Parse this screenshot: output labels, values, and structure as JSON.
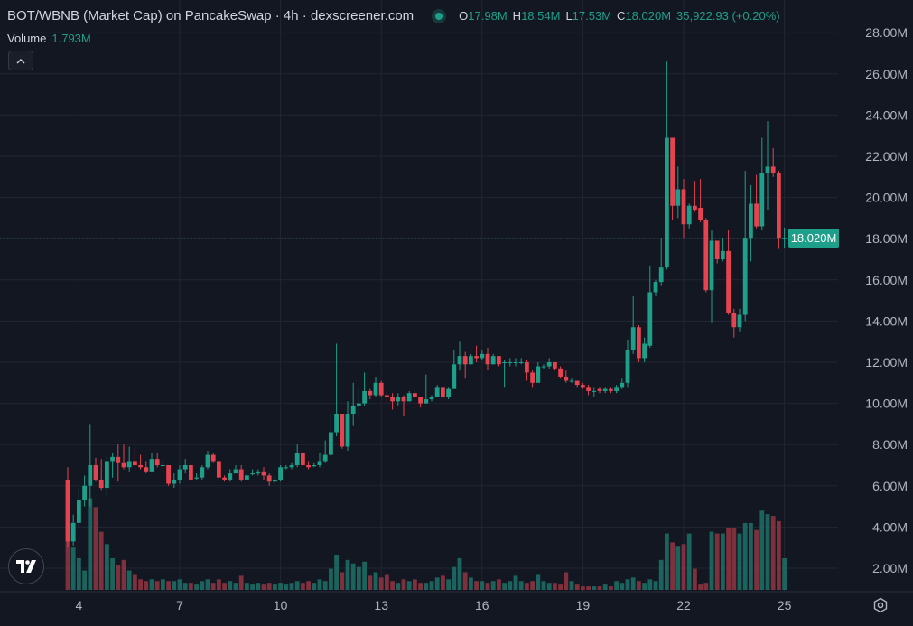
{
  "header": {
    "title": "BOT/WBNB (Market Cap) on PancakeSwap · 4h · dexscreener.com",
    "open_key": "O",
    "open": "17.98M",
    "high_key": "H",
    "high": "18.54M",
    "low_key": "L",
    "low": "17.53M",
    "close_key": "C",
    "close": "18.020M",
    "change": "35,922.93 (+0.20%)"
  },
  "volume": {
    "label": "Volume",
    "value": "1.793M"
  },
  "collapse_icon": "chevron-up-icon",
  "logo": "TV",
  "current_price_label": "18.020M",
  "colors": {
    "background": "#131722",
    "up": "#1e9f8a",
    "down": "#e5434f",
    "grid": "#222632"
  },
  "chart_data": {
    "type": "candlestick",
    "interval": "4h",
    "y_unit": "M",
    "ylim": [
      1,
      28.5
    ],
    "y_ticks": [
      "2.00M",
      "4.00M",
      "6.00M",
      "8.00M",
      "10.00M",
      "12.00M",
      "14.00M",
      "16.00M",
      "18.00M",
      "20.00M",
      "22.00M",
      "24.00M",
      "26.00M",
      "28.00M"
    ],
    "x_ticks": [
      "4",
      "7",
      "10",
      "13",
      "16",
      "19",
      "22",
      "25"
    ],
    "grid": true,
    "current_price": 18.02,
    "columns": [
      "open",
      "high",
      "low",
      "close",
      "volume"
    ],
    "ohlcv": [
      [
        6.3,
        6.9,
        3.0,
        3.3,
        5.0
      ],
      [
        3.3,
        4.6,
        3.1,
        4.2,
        2.4
      ],
      [
        4.2,
        5.9,
        4.0,
        5.3,
        1.8
      ],
      [
        5.3,
        6.5,
        5.0,
        6.0,
        1.1
      ],
      [
        6.0,
        9.0,
        5.0,
        7.0,
        5.2
      ],
      [
        7.0,
        7.35,
        6.2,
        6.3,
        4.7
      ],
      [
        6.3,
        7.3,
        5.8,
        5.9,
        3.3
      ],
      [
        5.9,
        7.4,
        5.5,
        7.2,
        2.6
      ],
      [
        7.2,
        7.6,
        6.4,
        7.4,
        1.8
      ],
      [
        7.4,
        8.0,
        6.2,
        7.1,
        1.4
      ],
      [
        7.1,
        8.0,
        6.8,
        6.9,
        1.7
      ],
      [
        6.9,
        7.9,
        6.7,
        7.2,
        1.1
      ],
      [
        7.2,
        7.8,
        6.9,
        7.0,
        0.9
      ],
      [
        7.0,
        7.5,
        6.8,
        6.9,
        0.6
      ],
      [
        6.9,
        7.2,
        6.6,
        6.7,
        0.5
      ],
      [
        6.7,
        7.6,
        6.7,
        7.3,
        0.6
      ],
      [
        7.3,
        7.6,
        6.9,
        7.0,
        0.5
      ],
      [
        7.0,
        7.3,
        6.9,
        7.0,
        0.6
      ],
      [
        7.0,
        7.0,
        6.0,
        6.1,
        0.5
      ],
      [
        6.1,
        6.6,
        5.9,
        6.3,
        0.5
      ],
      [
        6.3,
        7.0,
        6.1,
        6.8,
        0.6
      ],
      [
        6.8,
        7.3,
        6.6,
        7.0,
        0.4
      ],
      [
        7.0,
        7.0,
        6.2,
        6.3,
        0.4
      ],
      [
        6.35,
        6.6,
        6.3,
        6.4,
        0.3
      ],
      [
        6.4,
        7.0,
        6.3,
        6.9,
        0.5
      ],
      [
        6.9,
        7.7,
        6.8,
        7.5,
        0.6
      ],
      [
        7.5,
        7.6,
        7.1,
        7.2,
        0.4
      ],
      [
        7.2,
        7.2,
        6.2,
        6.4,
        0.6
      ],
      [
        6.4,
        6.5,
        6.2,
        6.3,
        0.4
      ],
      [
        6.3,
        6.8,
        6.2,
        6.6,
        0.5
      ],
      [
        6.6,
        7.0,
        6.6,
        6.8,
        0.4
      ],
      [
        6.8,
        7.0,
        6.2,
        6.3,
        0.8
      ],
      [
        6.3,
        6.6,
        6.3,
        6.5,
        0.4
      ],
      [
        6.6,
        6.8,
        6.5,
        6.6,
        0.3
      ],
      [
        6.6,
        6.8,
        6.5,
        6.7,
        0.4
      ],
      [
        6.7,
        6.9,
        6.3,
        6.5,
        0.3
      ],
      [
        6.5,
        6.6,
        6.0,
        6.2,
        0.4
      ],
      [
        6.2,
        6.5,
        6.1,
        6.3,
        0.3
      ],
      [
        6.3,
        7.0,
        6.2,
        6.9,
        0.4
      ],
      [
        6.9,
        7.0,
        6.8,
        6.9,
        0.3
      ],
      [
        6.9,
        7.1,
        6.8,
        7.0,
        0.4
      ],
      [
        7.0,
        8.0,
        6.9,
        7.6,
        0.5
      ],
      [
        7.6,
        7.7,
        6.9,
        7.0,
        0.4
      ],
      [
        7.0,
        7.2,
        6.8,
        6.9,
        0.5
      ],
      [
        6.95,
        7.1,
        6.9,
        7.0,
        0.4
      ],
      [
        7.0,
        7.6,
        6.9,
        7.2,
        0.6
      ],
      [
        7.2,
        8.2,
        7.1,
        7.5,
        0.5
      ],
      [
        7.5,
        9.5,
        7.4,
        8.6,
        1.2
      ],
      [
        8.6,
        12.9,
        8.4,
        9.5,
        2.0
      ],
      [
        9.5,
        9.5,
        7.8,
        7.9,
        1.0
      ],
      [
        7.9,
        10.1,
        7.7,
        9.5,
        1.7
      ],
      [
        9.5,
        11.0,
        8.9,
        9.9,
        1.5
      ],
      [
        9.9,
        10.7,
        9.3,
        10.0,
        1.3
      ],
      [
        10.0,
        11.5,
        9.9,
        10.6,
        1.6
      ],
      [
        10.6,
        10.7,
        10.2,
        10.4,
        0.8
      ],
      [
        10.4,
        11.3,
        10.3,
        11.0,
        1.0
      ],
      [
        11.0,
        11.1,
        10.3,
        10.4,
        0.7
      ],
      [
        10.4,
        10.6,
        10.0,
        10.3,
        0.9
      ],
      [
        10.3,
        10.5,
        9.7,
        10.1,
        0.5
      ],
      [
        10.1,
        10.5,
        9.9,
        10.3,
        0.4
      ],
      [
        10.3,
        10.4,
        9.4,
        10.1,
        0.6
      ],
      [
        10.1,
        10.6,
        10.1,
        10.5,
        0.5
      ],
      [
        10.5,
        10.6,
        10.2,
        10.3,
        0.6
      ],
      [
        10.3,
        10.3,
        9.8,
        10.0,
        0.4
      ],
      [
        10.0,
        11.4,
        10.0,
        10.2,
        0.4
      ],
      [
        10.2,
        10.4,
        10.1,
        10.3,
        0.5
      ],
      [
        10.3,
        10.9,
        10.3,
        10.8,
        0.7
      ],
      [
        10.8,
        10.8,
        10.2,
        10.3,
        0.8
      ],
      [
        10.3,
        10.8,
        10.2,
        10.7,
        0.6
      ],
      [
        10.7,
        12.6,
        10.7,
        11.9,
        1.3
      ],
      [
        11.9,
        13.0,
        11.6,
        12.3,
        1.8
      ],
      [
        12.3,
        12.5,
        11.2,
        11.9,
        1.0
      ],
      [
        11.9,
        12.4,
        11.9,
        12.3,
        0.7
      ],
      [
        12.3,
        12.8,
        12.0,
        12.2,
        0.5
      ],
      [
        12.2,
        12.6,
        12.1,
        12.4,
        0.5
      ],
      [
        12.4,
        12.7,
        11.6,
        11.9,
        0.4
      ],
      [
        11.9,
        12.4,
        11.9,
        12.3,
        0.5
      ],
      [
        12.3,
        12.3,
        11.8,
        11.9,
        0.6
      ],
      [
        12.0,
        12.1,
        10.8,
        12.0,
        0.4
      ],
      [
        12.0,
        12.2,
        11.8,
        12.0,
        0.5
      ],
      [
        12.0,
        12.2,
        11.8,
        12.0,
        0.8
      ],
      [
        12.0,
        12.2,
        11.9,
        12.0,
        0.5
      ],
      [
        12.0,
        12.1,
        11.1,
        11.5,
        0.4
      ],
      [
        11.5,
        11.6,
        10.8,
        11.0,
        0.5
      ],
      [
        11.0,
        12.0,
        11.0,
        11.8,
        0.9
      ],
      [
        11.8,
        11.9,
        11.7,
        11.8,
        0.5
      ],
      [
        11.8,
        12.2,
        11.7,
        12.0,
        0.4
      ],
      [
        12.0,
        12.0,
        11.6,
        11.7,
        0.4
      ],
      [
        11.7,
        11.8,
        11.2,
        11.3,
        0.3
      ],
      [
        11.3,
        11.6,
        11.0,
        11.1,
        1.0
      ],
      [
        11.1,
        11.2,
        11.0,
        11.1,
        0.5
      ],
      [
        11.1,
        11.1,
        10.8,
        10.9,
        0.3
      ],
      [
        10.9,
        11.0,
        10.7,
        10.8,
        0.2
      ],
      [
        10.8,
        10.9,
        10.4,
        10.6,
        0.2
      ],
      [
        10.6,
        10.8,
        10.3,
        10.6,
        0.2
      ],
      [
        10.7,
        10.8,
        10.5,
        10.6,
        0.2
      ],
      [
        10.6,
        10.8,
        10.5,
        10.7,
        0.3
      ],
      [
        10.7,
        10.8,
        10.5,
        10.6,
        0.2
      ],
      [
        10.6,
        10.9,
        10.5,
        10.8,
        0.5
      ],
      [
        10.8,
        11.2,
        10.7,
        11.0,
        0.4
      ],
      [
        11.0,
        13.1,
        10.8,
        12.6,
        0.6
      ],
      [
        12.6,
        15.2,
        12.4,
        13.7,
        0.7
      ],
      [
        13.7,
        13.8,
        12.0,
        12.2,
        0.5
      ],
      [
        12.2,
        13.2,
        12.0,
        12.9,
        0.4
      ],
      [
        12.8,
        16.7,
        12.7,
        15.4,
        0.6
      ],
      [
        15.4,
        16.0,
        15.2,
        15.9,
        0.5
      ],
      [
        15.9,
        18.0,
        15.7,
        16.6,
        1.7
      ],
      [
        16.6,
        26.6,
        16.5,
        22.9,
        3.2
      ],
      [
        22.9,
        22.9,
        18.9,
        19.6,
        2.7
      ],
      [
        19.6,
        21.5,
        19.0,
        20.4,
        2.5
      ],
      [
        20.4,
        20.9,
        18.0,
        18.7,
        2.6
      ],
      [
        18.7,
        19.7,
        18.5,
        19.6,
        3.2
      ],
      [
        19.6,
        20.8,
        19.3,
        19.4,
        1.2
      ],
      [
        19.5,
        20.9,
        18.8,
        18.9,
        0.3
      ],
      [
        18.9,
        19.0,
        15.4,
        15.5,
        0.4
      ],
      [
        15.5,
        18.4,
        13.9,
        17.9,
        3.3
      ],
      [
        17.9,
        17.9,
        16.8,
        17.0,
        3.2
      ],
      [
        17.0,
        18.0,
        16.9,
        17.4,
        3.2
      ],
      [
        17.4,
        18.4,
        14.3,
        14.4,
        3.5
      ],
      [
        14.4,
        14.6,
        13.2,
        13.7,
        3.5
      ],
      [
        13.7,
        14.6,
        13.5,
        14.3,
        3.2
      ],
      [
        14.3,
        21.3,
        14.0,
        18.0,
        3.8
      ],
      [
        18.0,
        20.6,
        16.9,
        19.7,
        3.8
      ],
      [
        19.7,
        21.1,
        18.5,
        18.6,
        3.4
      ],
      [
        18.6,
        22.9,
        18.4,
        21.2,
        4.5
      ],
      [
        21.2,
        23.7,
        19.4,
        21.5,
        4.3
      ],
      [
        21.5,
        22.4,
        21.0,
        21.2,
        4.2
      ],
      [
        21.2,
        21.3,
        17.5,
        18.0,
        3.9
      ],
      [
        17.98,
        18.54,
        17.53,
        18.02,
        1.793
      ]
    ]
  }
}
